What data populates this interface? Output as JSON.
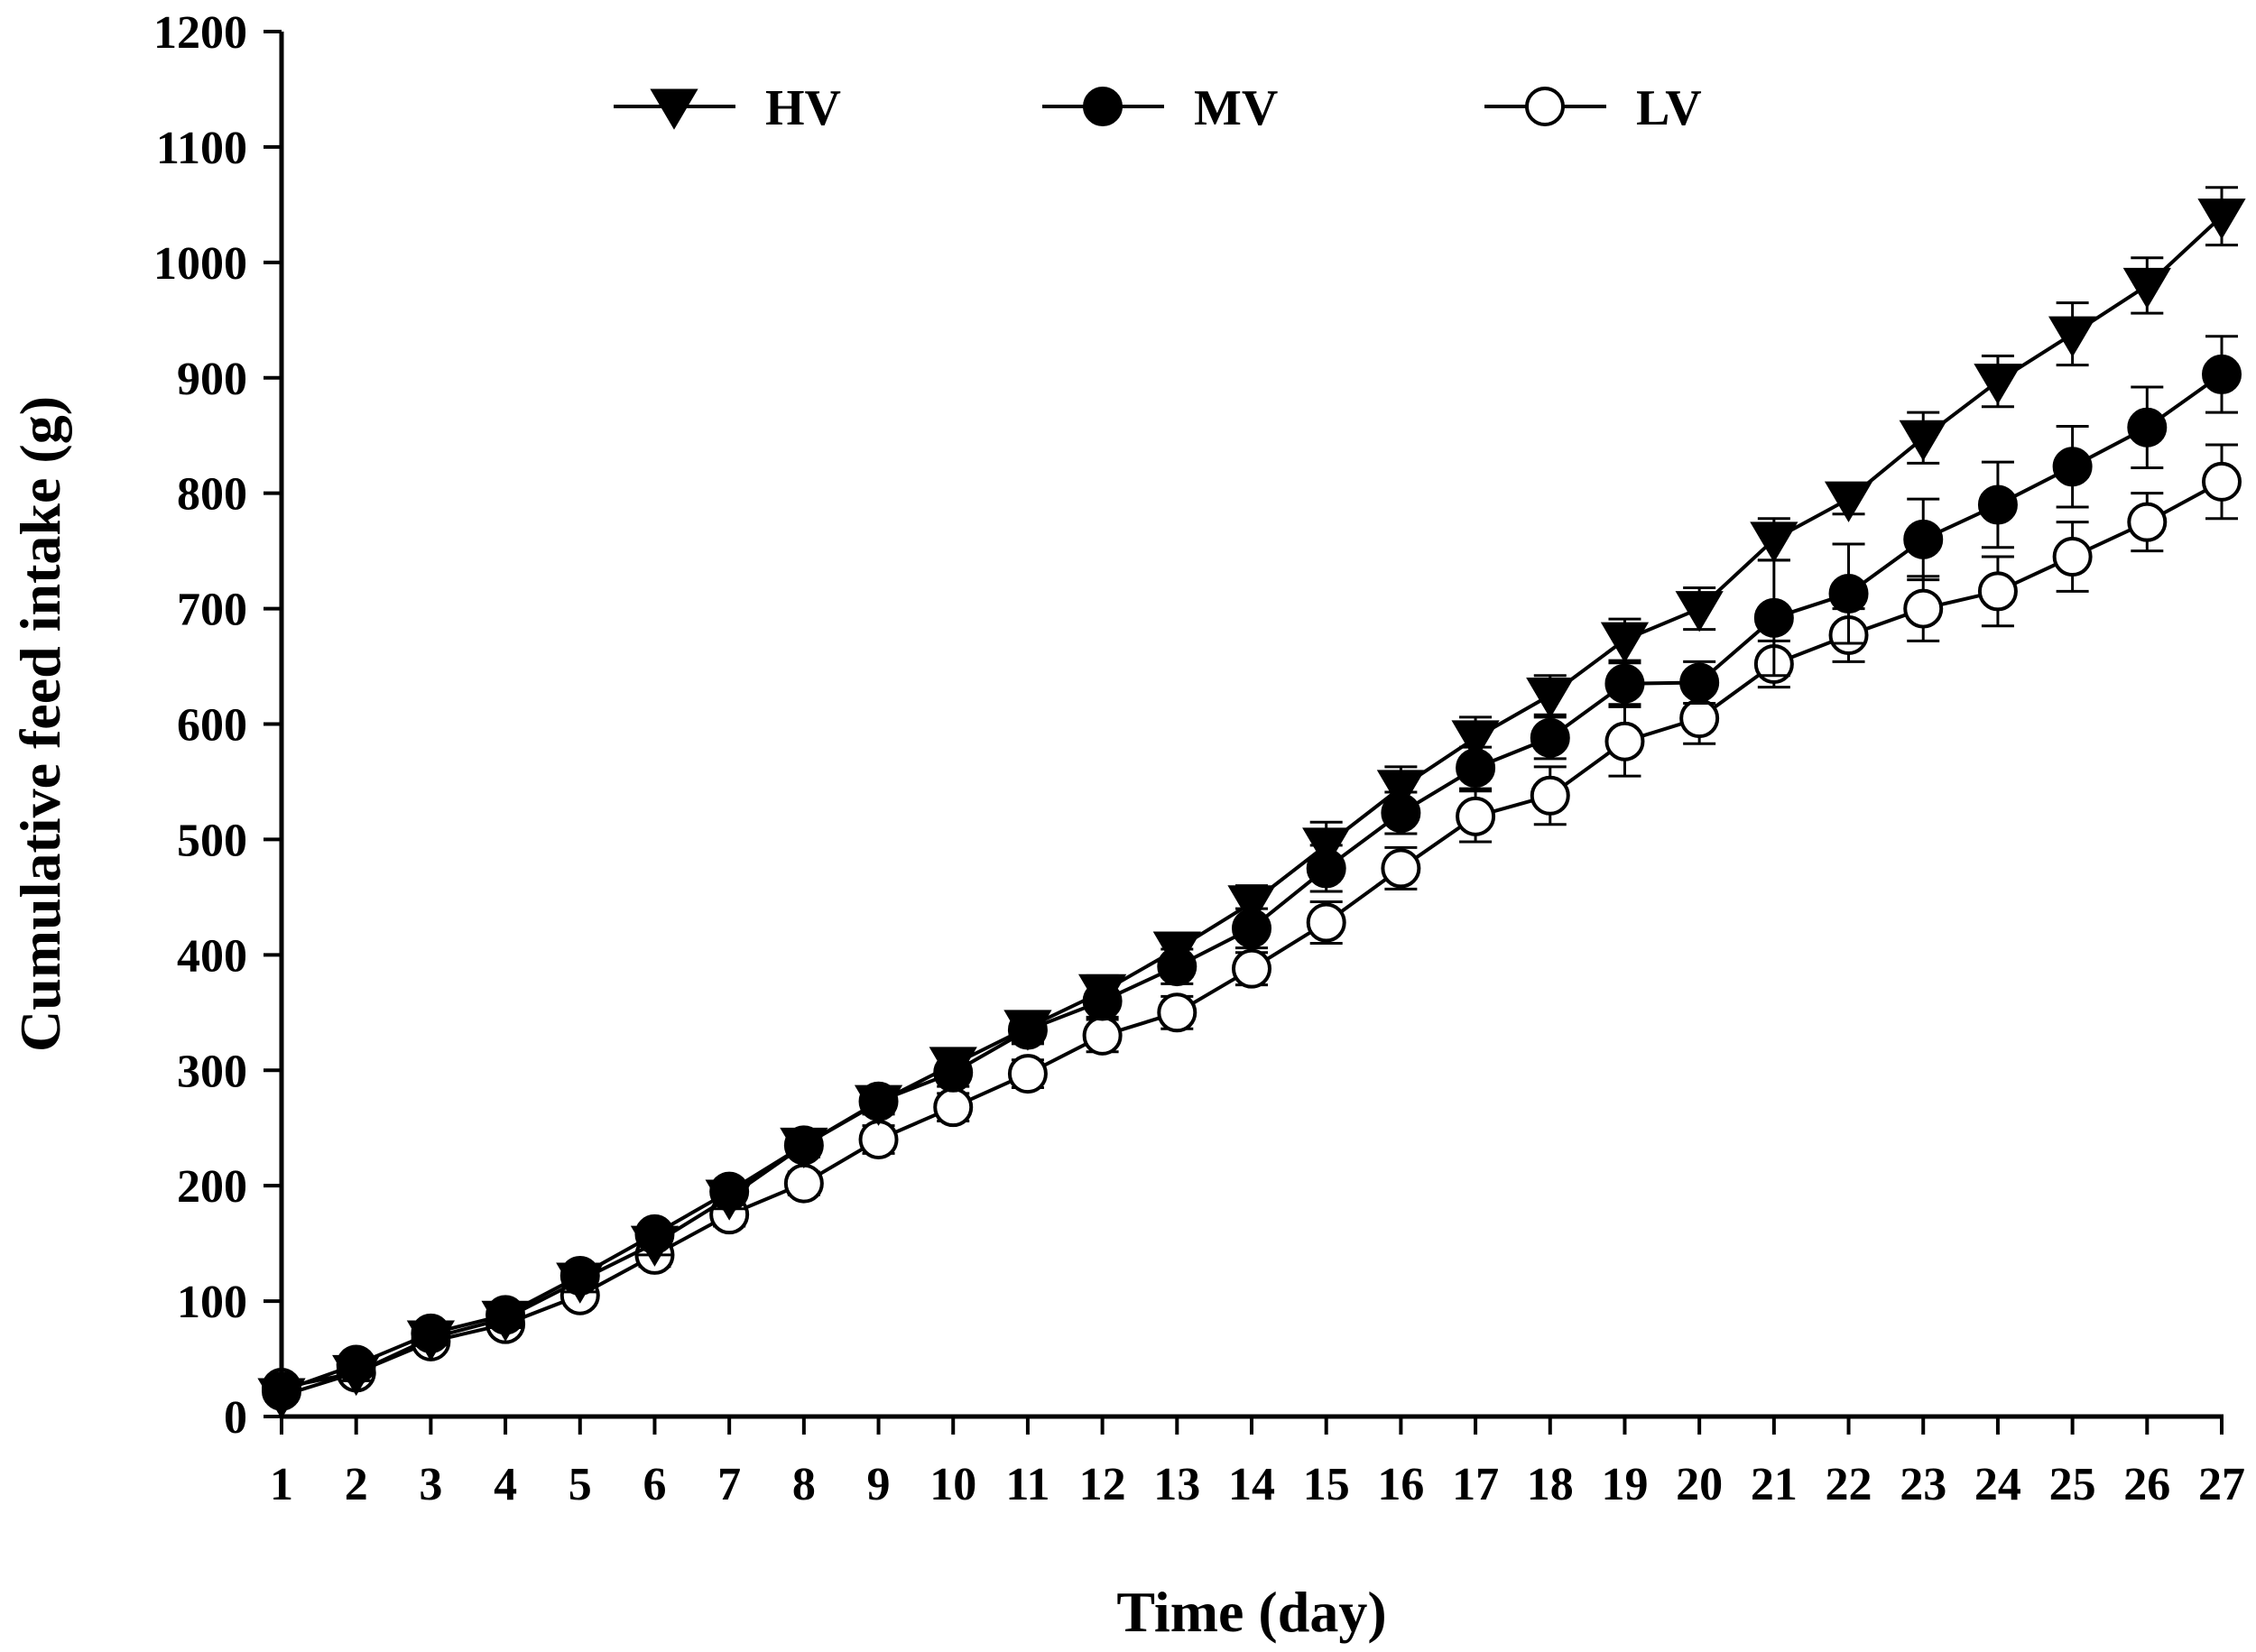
{
  "chart_data": {
    "type": "line",
    "title": "",
    "xlabel": "Time (day)",
    "ylabel": "Cumulative feed intake (g)",
    "xlim": [
      1,
      27
    ],
    "ylim": [
      0,
      1200
    ],
    "x": [
      1,
      2,
      3,
      4,
      5,
      6,
      7,
      8,
      9,
      10,
      11,
      12,
      13,
      14,
      15,
      16,
      17,
      18,
      19,
      20,
      21,
      22,
      23,
      24,
      25,
      26,
      27
    ],
    "x_ticks": [
      "1",
      "2",
      "3",
      "4",
      "5",
      "6",
      "7",
      "8",
      "9",
      "10",
      "11",
      "12",
      "13",
      "14",
      "15",
      "16",
      "17",
      "18",
      "19",
      "20",
      "21",
      "22",
      "23",
      "24",
      "25",
      "26",
      "27"
    ],
    "y_ticks": [
      "0",
      "100",
      "200",
      "300",
      "400",
      "500",
      "600",
      "700",
      "800",
      "900",
      "1000",
      "1100",
      "1200"
    ],
    "y_tick_values": [
      0,
      100,
      200,
      300,
      400,
      500,
      600,
      700,
      800,
      900,
      1000,
      1100,
      1200
    ],
    "grid": false,
    "legend_position": "top",
    "series": [
      {
        "name": "HV",
        "marker": "triangle-down-filled",
        "values": [
          18,
          38,
          68,
          85,
          118,
          150,
          190,
          235,
          272,
          305,
          337,
          368,
          405,
          445,
          495,
          545,
          588,
          625,
          673,
          700,
          760,
          795,
          848,
          897,
          938,
          980,
          1040
        ],
        "errors": [
          5,
          7,
          6,
          8,
          10,
          10,
          10,
          10,
          10,
          12,
          12,
          14,
          14,
          15,
          20,
          18,
          18,
          17,
          18,
          18,
          18,
          13,
          22,
          22,
          27,
          24,
          25
        ]
      },
      {
        "name": "MV",
        "marker": "circle-filled",
        "values": [
          22,
          45,
          72,
          88,
          122,
          158,
          195,
          235,
          273,
          298,
          335,
          360,
          390,
          423,
          475,
          523,
          562,
          588,
          635,
          636,
          692,
          713,
          760,
          790,
          823,
          857,
          903
        ],
        "errors": [
          5,
          5,
          5,
          7,
          8,
          8,
          8,
          10,
          10,
          12,
          12,
          14,
          15,
          17,
          20,
          18,
          18,
          18,
          18,
          18,
          50,
          43,
          35,
          37,
          35,
          35,
          33
        ]
      },
      {
        "name": "LV",
        "marker": "circle-open",
        "values": [
          25,
          38,
          65,
          80,
          105,
          140,
          175,
          202,
          240,
          268,
          297,
          330,
          350,
          388,
          428,
          475,
          520,
          538,
          585,
          605,
          652,
          677,
          700,
          715,
          745,
          775,
          810
        ],
        "errors": [
          5,
          5,
          6,
          6,
          8,
          10,
          10,
          10,
          12,
          12,
          12,
          14,
          14,
          14,
          18,
          18,
          22,
          25,
          30,
          22,
          20,
          23,
          28,
          30,
          30,
          25,
          32
        ]
      }
    ]
  }
}
